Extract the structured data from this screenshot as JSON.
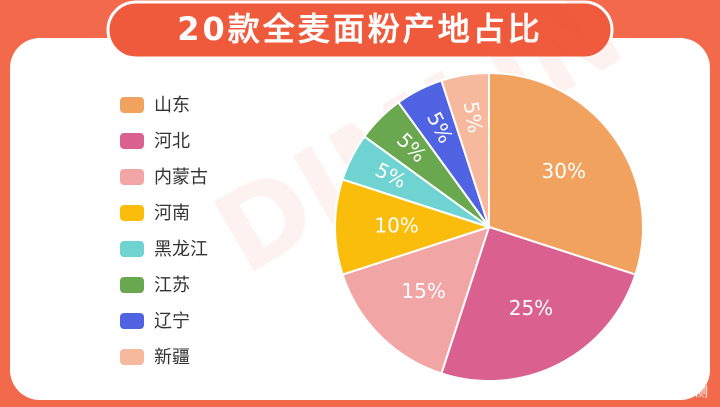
{
  "chart_data": {
    "type": "pie",
    "title": "20款全麦面粉产地占比",
    "categories": [
      "山东",
      "河北",
      "内蒙古",
      "河南",
      "黑龙江",
      "江苏",
      "辽宁",
      "新疆"
    ],
    "values": [
      30,
      25,
      15,
      10,
      5,
      5,
      5,
      5
    ],
    "value_labels": [
      "30%",
      "25%",
      "15%",
      "10%",
      "5%",
      "5%",
      "5%",
      "5%"
    ],
    "colors": [
      "#f2a25f",
      "#d9608f",
      "#f2a5a5",
      "#fbbd0c",
      "#6fd4d1",
      "#6aa84f",
      "#4f63e3",
      "#f6b99d"
    ]
  },
  "footer": "搜狐号 @盯芒评测"
}
